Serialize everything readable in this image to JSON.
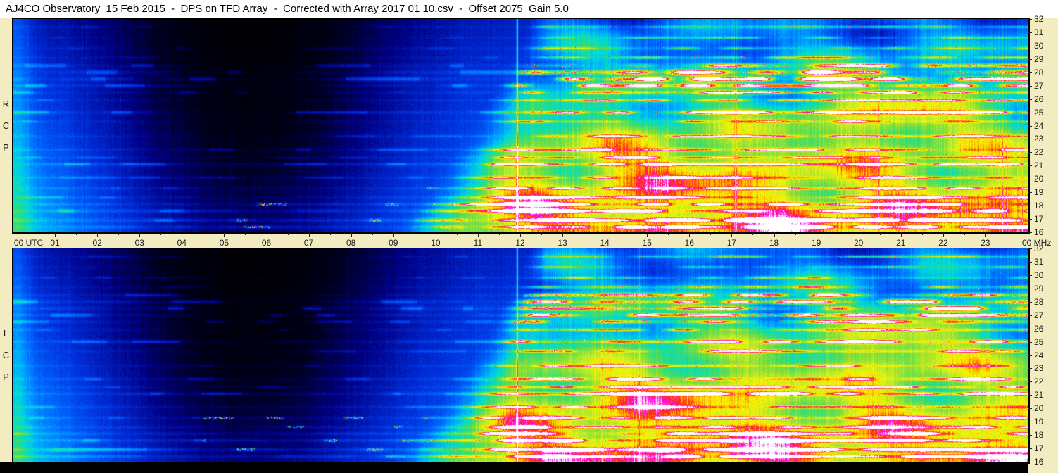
{
  "title_bar": {
    "text": "AJ4CO Observatory  15 Feb 2015  -  DPS on TFD Array  -  Corrected with Array 2017 01 10.csv  -  Offset 2075  Gain 5.0"
  },
  "panels": [
    {
      "id": "rcp",
      "name": "RCP",
      "letters": [
        "R",
        "C",
        "P"
      ]
    },
    {
      "id": "lcp",
      "name": "LCP",
      "letters": [
        "L",
        "C",
        "P"
      ]
    }
  ],
  "time_axis": {
    "start_label": "00 UTC",
    "hour_labels": [
      "01",
      "02",
      "03",
      "04",
      "05",
      "06",
      "07",
      "08",
      "09",
      "10",
      "11",
      "12",
      "13",
      "14",
      "15",
      "16",
      "17",
      "18",
      "19",
      "20",
      "21",
      "22",
      "23"
    ],
    "end_label": "00 MHz"
  },
  "frequency_axis": {
    "unit": "MHz",
    "tick_labels": [
      "32",
      "31",
      "30",
      "29",
      "28",
      "27",
      "26",
      "25",
      "24",
      "23",
      "22",
      "21",
      "20",
      "19",
      "18",
      "17",
      "16"
    ]
  },
  "colors": {
    "margin_background": "#f2ecc0",
    "title_background": "#ffffff",
    "axis_text": "#1c1c1c",
    "frame_border": "#000000",
    "bottom_bar": "#000000"
  },
  "chart_data": {
    "type": "heatmap",
    "title": "AJ4CO Observatory 15 Feb 2015 - DPS on TFD Array - Corrected with Array 2017 01 10.csv - Offset 2075 Gain 5.0",
    "observatory": "AJ4CO Observatory",
    "date": "15 Feb 2015",
    "instrument": "DPS on TFD Array",
    "correction_file": "Array 2017 01 10.csv",
    "offset": 2075,
    "gain": 5.0,
    "x": {
      "label": "UTC",
      "min": 0,
      "max": 24,
      "tick_interval": 1
    },
    "y": {
      "label": "MHz",
      "min": 16,
      "max": 32,
      "tick_interval": 1
    },
    "panels": [
      {
        "name": "RCP",
        "description": "Right circular polarization dynamic power spectrum"
      },
      {
        "name": "LCP",
        "description": "Left circular polarization dynamic power spectrum"
      }
    ],
    "colormap": [
      {
        "pos": 0.0,
        "color": "#000000"
      },
      {
        "pos": 0.1,
        "color": "#00001c"
      },
      {
        "pos": 0.2,
        "color": "#000085"
      },
      {
        "pos": 0.32,
        "color": "#0030dd"
      },
      {
        "pos": 0.42,
        "color": "#0068ff"
      },
      {
        "pos": 0.5,
        "color": "#00a8ff"
      },
      {
        "pos": 0.57,
        "color": "#00dcd8"
      },
      {
        "pos": 0.63,
        "color": "#2add7f"
      },
      {
        "pos": 0.7,
        "color": "#7fdf3a"
      },
      {
        "pos": 0.77,
        "color": "#c9ec25"
      },
      {
        "pos": 0.83,
        "color": "#fdf800"
      },
      {
        "pos": 0.88,
        "color": "#ff9c00"
      },
      {
        "pos": 0.92,
        "color": "#ff2a00"
      },
      {
        "pos": 0.96,
        "color": "#ff00ff"
      },
      {
        "pos": 1.0,
        "color": "#ffffff"
      }
    ],
    "features": {
      "description": "Galactic background spectrum brighter at low frequencies; dark quiet trough centered near 05:30 UTC; sharp brightening near 12:00 UTC; strong speckled horizontal RFI bands dominate 12:00-24:00 UTC.",
      "quiet_interval_utc": [
        2.0,
        9.5
      ],
      "active_interval_utc": [
        12.0,
        24.0
      ],
      "terminator_utc": 11.93,
      "rfi_bands": [
        {
          "mhz": 31.4,
          "sigma": 0.07,
          "strength": 0.4,
          "day_strength": 0.04,
          "speckle": 0.1
        },
        {
          "mhz": 30.6,
          "sigma": 0.06,
          "strength": 0.33,
          "day_strength": 0.03,
          "speckle": 0.07
        },
        {
          "mhz": 29.8,
          "sigma": 0.07,
          "strength": 0.38,
          "day_strength": 0.04,
          "speckle": 0.09
        },
        {
          "mhz": 29.1,
          "sigma": 0.07,
          "strength": 0.45,
          "day_strength": 0.04,
          "speckle": 0.12
        },
        {
          "mhz": 28.5,
          "sigma": 0.1,
          "strength": 0.8,
          "day_strength": 0.06,
          "speckle": 0.34
        },
        {
          "mhz": 28.0,
          "sigma": 0.12,
          "strength": 0.92,
          "day_strength": 0.08,
          "speckle": 0.46
        },
        {
          "mhz": 27.5,
          "sigma": 0.12,
          "strength": 0.97,
          "day_strength": 0.09,
          "speckle": 0.52
        },
        {
          "mhz": 27.0,
          "sigma": 0.1,
          "strength": 0.9,
          "day_strength": 0.08,
          "speckle": 0.44
        },
        {
          "mhz": 26.5,
          "sigma": 0.09,
          "strength": 0.78,
          "day_strength": 0.06,
          "speckle": 0.32
        },
        {
          "mhz": 25.9,
          "sigma": 0.07,
          "strength": 0.52,
          "day_strength": 0.05,
          "speckle": 0.15
        },
        {
          "mhz": 25.0,
          "sigma": 0.09,
          "strength": 0.8,
          "day_strength": 0.08,
          "speckle": 0.33
        },
        {
          "mhz": 24.3,
          "sigma": 0.07,
          "strength": 0.52,
          "day_strength": 0.05,
          "speckle": 0.13
        },
        {
          "mhz": 23.2,
          "sigma": 0.07,
          "strength": 0.46,
          "day_strength": 0.05,
          "speckle": 0.11
        },
        {
          "mhz": 22.2,
          "sigma": 0.08,
          "strength": 0.7,
          "day_strength": 0.07,
          "speckle": 0.26
        },
        {
          "mhz": 21.6,
          "sigma": 0.06,
          "strength": 0.5,
          "day_strength": 0.05,
          "speckle": 0.13
        },
        {
          "mhz": 21.1,
          "sigma": 0.08,
          "strength": 0.76,
          "day_strength": 0.1,
          "speckle": 0.3
        },
        {
          "mhz": 20.1,
          "sigma": 0.07,
          "strength": 0.52,
          "day_strength": 0.06,
          "speckle": 0.13
        },
        {
          "mhz": 19.3,
          "sigma": 0.07,
          "strength": 0.56,
          "day_strength": 0.06,
          "speckle": 0.16
        },
        {
          "mhz": 18.6,
          "sigma": 0.07,
          "strength": 0.52,
          "day_strength": 0.07,
          "speckle": 0.14
        },
        {
          "mhz": 18.1,
          "sigma": 0.08,
          "strength": 0.62,
          "day_strength": 0.09,
          "speckle": 0.22
        },
        {
          "mhz": 17.6,
          "sigma": 0.09,
          "strength": 0.72,
          "day_strength": 0.11,
          "speckle": 0.3
        },
        {
          "mhz": 16.9,
          "sigma": 0.09,
          "strength": 0.76,
          "day_strength": 0.13,
          "speckle": 0.3
        },
        {
          "mhz": 16.4,
          "sigma": 0.08,
          "strength": 0.62,
          "day_strength": 0.11,
          "speckle": 0.22
        }
      ]
    }
  }
}
